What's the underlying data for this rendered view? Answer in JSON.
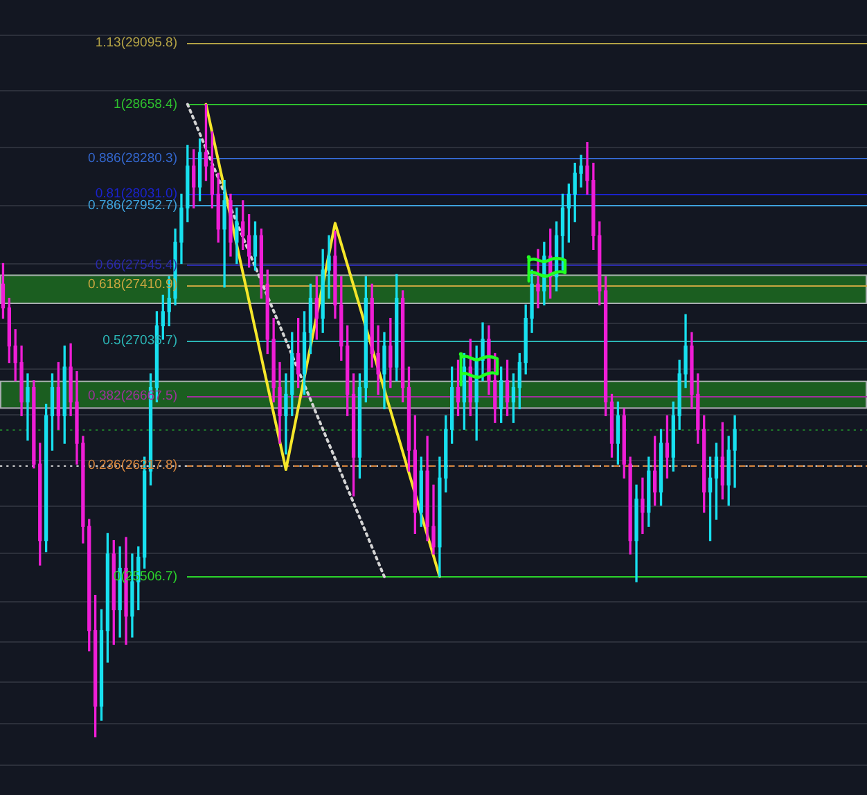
{
  "chart_data": {
    "type": "candlestick",
    "log": true,
    "grid": "y",
    "tick_labels": false,
    "marker": "none",
    "ylim": [
      24170,
      29405
    ],
    "yticks": [
      {
        "value": 29150,
        "label": null
      },
      {
        "value": 28750,
        "label": null
      },
      {
        "value": 28350,
        "label": null
      },
      {
        "value": 27950,
        "label": null
      },
      {
        "value": 27550,
        "label": null
      },
      {
        "value": 27150,
        "label": null
      },
      {
        "value": 26850,
        "label": null
      },
      {
        "value": 26550,
        "label": null
      },
      {
        "value": 26250,
        "label": null
      },
      {
        "value": 25950,
        "label": null
      },
      {
        "value": 25650,
        "label": null
      },
      {
        "value": 25350,
        "label": null
      },
      {
        "value": 25100,
        "label": null
      },
      {
        "value": 24850,
        "label": null
      },
      {
        "value": 24600,
        "label": null
      },
      {
        "value": 24350,
        "label": null
      }
    ],
    "categories": [
      null,
      null,
      null,
      null,
      null,
      null,
      null,
      null,
      null,
      null,
      null,
      null,
      null,
      null,
      null,
      null,
      null,
      null,
      null,
      null,
      null,
      null,
      null,
      null,
      null,
      null,
      null,
      null,
      null,
      null,
      null,
      null,
      null,
      null,
      null,
      null,
      null,
      null,
      null,
      null,
      null,
      null,
      null,
      null,
      null,
      null,
      null,
      null,
      null,
      null,
      null,
      null,
      null,
      null,
      null,
      null,
      null,
      null,
      null,
      null,
      null,
      null,
      null,
      null,
      null,
      null,
      null,
      null,
      null,
      null,
      null,
      null,
      null,
      null,
      null,
      null,
      null,
      null,
      null,
      null,
      null,
      null,
      null,
      null,
      null,
      null,
      null,
      null,
      null,
      null,
      null,
      null,
      null,
      null,
      null,
      null,
      null,
      null,
      null,
      null,
      null,
      null,
      null,
      null,
      null,
      null,
      null,
      null,
      null,
      null,
      null,
      null,
      null,
      null,
      null,
      null,
      null,
      null,
      null,
      null,
      null,
      null,
      null,
      null,
      null,
      null,
      null,
      null,
      null,
      null,
      null,
      null,
      null,
      null,
      null,
      null,
      null,
      null,
      null,
      null,
      null
    ],
    "ohlc": [
      [
        27415,
        27555,
        27185,
        27255
      ],
      [
        27255,
        27320,
        26890,
        27000
      ],
      [
        27000,
        27110,
        26770,
        26890
      ],
      [
        26890,
        27000,
        26540,
        26630
      ],
      [
        26630,
        26815,
        26380,
        26725
      ],
      [
        26725,
        26770,
        26200,
        26225
      ],
      [
        26225,
        26360,
        25580,
        25735
      ],
      [
        25735,
        26615,
        25665,
        26540
      ],
      [
        26540,
        26815,
        26315,
        26725
      ],
      [
        26725,
        26890,
        26450,
        26540
      ],
      [
        26540,
        27000,
        26360,
        26860
      ],
      [
        26860,
        27015,
        26540,
        26630
      ],
      [
        26630,
        26830,
        26225,
        26360
      ],
      [
        26360,
        26405,
        25720,
        25825
      ],
      [
        25825,
        25870,
        25045,
        25170
      ],
      [
        25170,
        25390,
        24520,
        24705
      ],
      [
        24705,
        25300,
        24620,
        25170
      ],
      [
        25170,
        25780,
        24975,
        25650
      ],
      [
        25650,
        25735,
        25085,
        25300
      ],
      [
        25300,
        25695,
        25130,
        25560
      ],
      [
        25560,
        25755,
        25085,
        25260
      ],
      [
        25260,
        25650,
        25130,
        25475
      ],
      [
        25475,
        25695,
        25300,
        25630
      ],
      [
        25630,
        26270,
        25560,
        26180
      ],
      [
        26180,
        26815,
        26090,
        26725
      ],
      [
        26725,
        27230,
        26630,
        27135
      ],
      [
        27135,
        27340,
        27045,
        27230
      ],
      [
        27230,
        27465,
        27135,
        27320
      ],
      [
        27320,
        27790,
        27275,
        27700
      ],
      [
        27700,
        28030,
        27555,
        27935
      ],
      [
        27935,
        28370,
        27840,
        28225
      ],
      [
        28225,
        28340,
        27935,
        28080
      ],
      [
        28080,
        28415,
        27985,
        28320
      ],
      [
        28320,
        28658.4,
        28125,
        28225
      ],
      [
        28225,
        28465,
        27935,
        28030
      ],
      [
        28030,
        28175,
        27700,
        27790
      ],
      [
        27790,
        28125,
        27395,
        27985
      ],
      [
        27985,
        28030,
        27605,
        27700
      ],
      [
        27700,
        27935,
        27555,
        27840
      ],
      [
        27840,
        27985,
        27650,
        27745
      ],
      [
        27745,
        27890,
        27530,
        27605
      ],
      [
        27605,
        27840,
        27510,
        27745
      ],
      [
        27745,
        27790,
        27320,
        27415
      ],
      [
        27415,
        27510,
        26950,
        27045
      ],
      [
        27045,
        27185,
        26630,
        26725
      ],
      [
        26725,
        26890,
        26360,
        26540
      ],
      [
        26540,
        26815,
        26290,
        26680
      ],
      [
        26680,
        27090,
        26540,
        26950
      ],
      [
        26950,
        27185,
        26725,
        26815
      ],
      [
        26815,
        27230,
        26680,
        27090
      ],
      [
        27090,
        27415,
        26950,
        27320
      ],
      [
        27320,
        27465,
        27045,
        27185
      ],
      [
        27185,
        27650,
        27090,
        27510
      ],
      [
        27510,
        27745,
        27320,
        27605
      ],
      [
        27605,
        27775,
        27185,
        27275
      ],
      [
        27275,
        27465,
        26905,
        27000
      ],
      [
        27000,
        27135,
        26540,
        26680
      ],
      [
        26680,
        26815,
        26020,
        26270
      ],
      [
        26270,
        26815,
        26135,
        26725
      ],
      [
        26725,
        27465,
        26630,
        27320
      ],
      [
        27320,
        27415,
        26860,
        26950
      ],
      [
        26950,
        27135,
        26680,
        26815
      ],
      [
        26815,
        27090,
        26585,
        27000
      ],
      [
        27000,
        27185,
        26725,
        26860
      ],
      [
        26860,
        27480,
        26770,
        27320
      ],
      [
        27320,
        27370,
        26630,
        26725
      ],
      [
        26725,
        26860,
        26180,
        26315
      ],
      [
        26315,
        26540,
        25780,
        25915
      ],
      [
        25915,
        26270,
        25825,
        26180
      ],
      [
        26180,
        26405,
        25735,
        25825
      ],
      [
        25825,
        26090,
        25650,
        25695
      ],
      [
        25695,
        26270,
        25506.7,
        26135
      ],
      [
        26135,
        26540,
        26045,
        26450
      ],
      [
        26450,
        26860,
        26360,
        26725
      ],
      [
        26725,
        26905,
        26540,
        26630
      ],
      [
        26630,
        26950,
        26450,
        26860
      ],
      [
        26860,
        27045,
        26540,
        26630
      ],
      [
        26630,
        27000,
        26380,
        26905
      ],
      [
        26905,
        27155,
        26770,
        27045
      ],
      [
        27045,
        27135,
        26680,
        26770
      ],
      [
        26770,
        26950,
        26495,
        26585
      ],
      [
        26585,
        26860,
        26495,
        26770
      ],
      [
        26770,
        26905,
        26540,
        26630
      ],
      [
        26630,
        26815,
        26495,
        26725
      ],
      [
        26725,
        26950,
        26585,
        26890
      ],
      [
        26890,
        27275,
        26815,
        27185
      ],
      [
        27185,
        27510,
        27090,
        27415
      ],
      [
        27415,
        27650,
        27255,
        27370
      ],
      [
        27370,
        27700,
        27275,
        27605
      ],
      [
        27605,
        27790,
        27320,
        27465
      ],
      [
        27465,
        27840,
        27370,
        27745
      ],
      [
        27745,
        28030,
        27510,
        27935
      ],
      [
        27935,
        28100,
        27700,
        28030
      ],
      [
        28030,
        28245,
        27840,
        28175
      ],
      [
        28175,
        28300,
        28080,
        28225
      ],
      [
        28225,
        28390,
        28030,
        28125
      ],
      [
        28125,
        28245,
        27650,
        27745
      ],
      [
        27745,
        27840,
        27275,
        27370
      ],
      [
        27370,
        27465,
        26540,
        26630
      ],
      [
        26630,
        26680,
        26270,
        26360
      ],
      [
        26360,
        26630,
        26225,
        26540
      ],
      [
        26540,
        26585,
        26135,
        26225
      ],
      [
        26225,
        26270,
        25650,
        25735
      ],
      [
        25735,
        26090,
        25475,
        26000
      ],
      [
        26000,
        26135,
        25780,
        25915
      ],
      [
        25915,
        26270,
        25825,
        26180
      ],
      [
        26180,
        26405,
        25960,
        26045
      ],
      [
        26045,
        26450,
        25960,
        26360
      ],
      [
        26360,
        26540,
        26135,
        26270
      ],
      [
        26270,
        26630,
        26180,
        26540
      ],
      [
        26540,
        26905,
        26450,
        26815
      ],
      [
        26815,
        27210,
        26725,
        27000
      ],
      [
        27000,
        27090,
        26585,
        26680
      ],
      [
        26680,
        26815,
        26360,
        26450
      ],
      [
        26450,
        26540,
        25915,
        26045
      ],
      [
        26045,
        26270,
        25735,
        26135
      ],
      [
        26135,
        26360,
        25870,
        26270
      ],
      [
        26270,
        26495,
        26000,
        26090
      ],
      [
        26090,
        26405,
        25960,
        26315
      ],
      [
        26315,
        26540,
        26075,
        26450
      ],
      null,
      null,
      null,
      null,
      null,
      null,
      null,
      null,
      null,
      null,
      null,
      null,
      null,
      null,
      null,
      null,
      null,
      null,
      null,
      null,
      null
    ],
    "colors": [
      "#ef1ed6",
      "#ef1ed6",
      "#ef1ed6",
      "#ef1ed6",
      "#18e0ef",
      "#ef1ed6",
      "#ef1ed6",
      "#18e0ef",
      "#18e0ef",
      "#ef1ed6",
      "#18e0ef",
      "#ef1ed6",
      "#ef1ed6",
      "#ef1ed6",
      "#ef1ed6",
      "#ef1ed6",
      "#18e0ef",
      "#18e0ef",
      "#ef1ed6",
      "#18e0ef",
      "#ef1ed6",
      "#18e0ef",
      "#18e0ef",
      "#18e0ef",
      "#18e0ef",
      "#18e0ef",
      "#18e0ef",
      "#18e0ef",
      "#18e0ef",
      "#18e0ef",
      "#18e0ef",
      "#ef1ed6",
      "#18e0ef",
      "#ef1ed6",
      "#ef1ed6",
      "#ef1ed6",
      "#18e0ef",
      "#ef1ed6",
      "#18e0ef",
      "#ef1ed6",
      "#ef1ed6",
      "#18e0ef",
      "#ef1ed6",
      "#ef1ed6",
      "#ef1ed6",
      "#ef1ed6",
      "#18e0ef",
      "#18e0ef",
      "#ef1ed6",
      "#18e0ef",
      "#18e0ef",
      "#ef1ed6",
      "#18e0ef",
      "#18e0ef",
      "#ef1ed6",
      "#ef1ed6",
      "#ef1ed6",
      "#ef1ed6",
      "#18e0ef",
      "#18e0ef",
      "#ef1ed6",
      "#ef1ed6",
      "#18e0ef",
      "#ef1ed6",
      "#18e0ef",
      "#ef1ed6",
      "#ef1ed6",
      "#ef1ed6",
      "#18e0ef",
      "#ef1ed6",
      "#ef1ed6",
      "#18e0ef",
      "#18e0ef",
      "#18e0ef",
      "#ef1ed6",
      "#18e0ef",
      "#ef1ed6",
      "#18e0ef",
      "#18e0ef",
      "#ef1ed6",
      "#ef1ed6",
      "#18e0ef",
      "#ef1ed6",
      "#18e0ef",
      "#18e0ef",
      "#18e0ef",
      "#18e0ef",
      "#ef1ed6",
      "#18e0ef",
      "#ef1ed6",
      "#18e0ef",
      "#18e0ef",
      "#18e0ef",
      "#18e0ef",
      "#18e0ef",
      "#ef1ed6",
      "#ef1ed6",
      "#ef1ed6",
      "#ef1ed6",
      "#ef1ed6",
      "#18e0ef",
      "#ef1ed6",
      "#ef1ed6",
      "#18e0ef",
      "#ef1ed6",
      "#18e0ef",
      "#ef1ed6",
      "#18e0ef",
      "#ef1ed6",
      "#18e0ef",
      "#18e0ef",
      "#18e0ef",
      "#ef1ed6",
      "#ef1ed6",
      "#ef1ed6",
      "#18e0ef",
      "#18e0ef",
      "#ef1ed6",
      "#18e0ef",
      "#18e0ef",
      null,
      null,
      null,
      null,
      null,
      null,
      null,
      null,
      null,
      null,
      null,
      null,
      null,
      null,
      null,
      null,
      null,
      null,
      null,
      null,
      null
    ],
    "series": [
      {
        "type": "line",
        "color": "#f5e62a",
        "values": [
          null,
          null,
          null,
          null,
          null,
          null,
          null,
          null,
          null,
          null,
          null,
          null,
          null,
          null,
          null,
          null,
          null,
          null,
          null,
          null,
          null,
          null,
          null,
          null,
          null,
          null,
          null,
          null,
          null,
          null,
          null,
          null,
          null,
          28658.4,
          null,
          null,
          null,
          null,
          null,
          null,
          null,
          null,
          null,
          null,
          null,
          null,
          26190,
          null,
          null,
          null,
          null,
          null,
          null,
          null,
          27830,
          null,
          null,
          null,
          null,
          null,
          null,
          null,
          null,
          null,
          null,
          null,
          null,
          null,
          null,
          null,
          null,
          25506.7,
          null,
          null,
          null,
          null,
          null,
          null,
          null,
          null,
          null,
          null,
          null,
          null,
          null,
          null,
          null,
          null,
          null,
          null,
          null,
          null,
          null,
          null,
          null,
          null,
          null,
          null,
          null,
          null,
          null,
          null,
          null,
          null,
          null,
          null,
          null,
          null,
          null,
          null,
          null,
          null,
          null,
          null,
          null,
          null,
          null,
          null,
          null,
          null,
          null,
          null,
          null,
          null,
          null,
          null,
          null,
          null,
          null,
          null,
          null,
          null,
          null,
          null,
          null,
          null,
          null,
          null,
          null,
          null,
          null
        ]
      },
      {
        "type": "line",
        "color": "#d4d4d4",
        "line_style": "dotted",
        "values": [
          null,
          null,
          null,
          null,
          null,
          null,
          null,
          null,
          null,
          null,
          null,
          null,
          null,
          null,
          null,
          null,
          null,
          null,
          null,
          null,
          null,
          null,
          null,
          null,
          null,
          null,
          null,
          null,
          null,
          null,
          28658.4,
          null,
          null,
          null,
          null,
          null,
          null,
          null,
          null,
          null,
          null,
          null,
          null,
          null,
          null,
          null,
          null,
          null,
          null,
          null,
          null,
          null,
          null,
          null,
          null,
          null,
          null,
          null,
          null,
          null,
          null,
          null,
          25506.7,
          null,
          null,
          null,
          null,
          null,
          null,
          null,
          null,
          null,
          null,
          null,
          null,
          null,
          null,
          null,
          null,
          null,
          null,
          null,
          null,
          null,
          null,
          null,
          null,
          null,
          null,
          null,
          null,
          null,
          null,
          null,
          null,
          null,
          null,
          null,
          null,
          null,
          null,
          null,
          null,
          null,
          null,
          null,
          null,
          null,
          null,
          null,
          null,
          null,
          null,
          null,
          null,
          null,
          null,
          null,
          null,
          null,
          null,
          null,
          null,
          null,
          null,
          null,
          null,
          null,
          null,
          null,
          null,
          null,
          null,
          null,
          null,
          null,
          null,
          null,
          null,
          null,
          null
        ]
      }
    ],
    "bands": [
      {
        "axis": "y",
        "from": 27290,
        "to": 27480,
        "color": "#1b5e20"
      },
      {
        "axis": "y",
        "from": 26595,
        "to": 26770,
        "color": "#1b5e20"
      }
    ],
    "ref_lines": [
      {
        "axis": "y",
        "value": 26450,
        "color": "#1f7a2a",
        "line_style": "dotted"
      },
      {
        "axis": "y",
        "value": 26218,
        "color": "#d0d0d0",
        "line_style": "dotted"
      },
      {
        "axis": "y",
        "value": 29095.8,
        "label": "1.13(29095.8)",
        "color": "#b3a245"
      },
      {
        "axis": "y",
        "value": 28658.4,
        "label": "1(28658.4)",
        "color": "#2ec02e"
      },
      {
        "axis": "y",
        "value": 28280.3,
        "label": "0.886(28280.3)",
        "color": "#3366cc"
      },
      {
        "axis": "y",
        "value": 28031.0,
        "label": "0.81(28031.0)",
        "color": "#1a22cc"
      },
      {
        "axis": "y",
        "value": 27952.7,
        "label": "0.786(27952.7)",
        "color": "#3ea2dc"
      },
      {
        "axis": "y",
        "value": 27545.4,
        "label": "0.66(27545.4)",
        "color": "#2a2aaa"
      },
      {
        "axis": "y",
        "value": 27410.9,
        "label": "0.618(27410.9)",
        "color": "#c9a640"
      },
      {
        "axis": "y",
        "value": 27036.7,
        "label": "0.5(27036.7)",
        "color": "#2bb5b5"
      },
      {
        "axis": "y",
        "value": 26667.5,
        "label": "0.382(26667.5)",
        "color": "#a0309e"
      },
      {
        "axis": "y",
        "value": 26217.8,
        "label": "0.236(26217.8)",
        "color": "#d8873e",
        "line_style": "dashed"
      },
      {
        "axis": "y",
        "value": 25506.7,
        "label": "0(25506.7)",
        "color": "#2bd42b"
      }
    ]
  }
}
